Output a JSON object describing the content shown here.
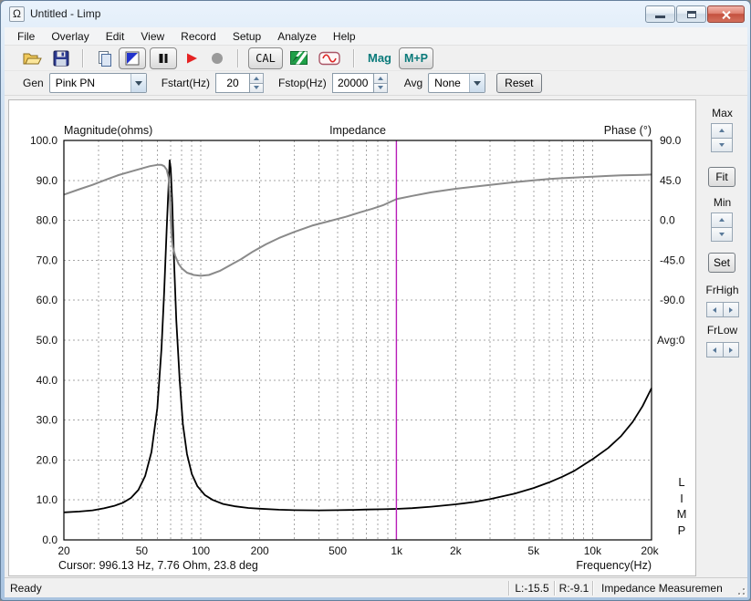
{
  "window": {
    "title": "Untitled - Limp",
    "icon": "Ω",
    "buttons": [
      "minimize",
      "restore",
      "close"
    ]
  },
  "menu": {
    "items": [
      "File",
      "Overlay",
      "Edit",
      "View",
      "Record",
      "Setup",
      "Analyze",
      "Help"
    ]
  },
  "toolbar": {
    "icons": [
      "open-folder",
      "save",
      "copy",
      "signal-generator-toggle",
      "pause-toggle",
      "start",
      "record",
      "cal",
      "spectrum",
      "sine-wave"
    ],
    "cal_label": "CAL",
    "mag_label": "Mag",
    "mp_label": "M+P"
  },
  "gen_bar": {
    "gen_label": "Gen",
    "gen_value": "Pink PN",
    "fstart_label": "Fstart(Hz)",
    "fstart_value": "20",
    "fstop_label": "Fstop(Hz)",
    "fstop_value": "20000",
    "avg_label": "Avg",
    "avg_value": "None",
    "reset_label": "Reset"
  },
  "right_panel": {
    "max_label": "Max",
    "fit_label": "Fit",
    "min_label": "Min",
    "set_label": "Set",
    "frhigh_label": "FrHigh",
    "frlow_label": "FrLow"
  },
  "chart_header": {
    "left": "Magnitude(ohms)",
    "center": "Impedance",
    "right": "Phase (°)"
  },
  "chart_footer": {
    "cursor_text": "Cursor: 996.13 Hz, 7.76 Ohm, 23.8 deg",
    "xaxis_label": "Frequency(Hz)"
  },
  "side_texts": {
    "avg_counter": "Avg:0",
    "limp_vertical": [
      "L",
      "I",
      "M",
      "P"
    ]
  },
  "status_bar": {
    "ready": "Ready",
    "left_level": "L:-15.5",
    "right_level": "R:-9.1",
    "mode": "Impedance Measuremen"
  },
  "colors": {
    "cursor_magenta": "#b81eb8",
    "curve_black": "#000000",
    "curve_gray": "#8a8a8a",
    "accent_teal": "#0a7a7a",
    "frame_blue": "#b6cee7"
  },
  "chart_data": {
    "type": "line",
    "title": "Impedance",
    "x_axis": {
      "label": "Frequency(Hz)",
      "scale": "log",
      "min": 20,
      "max": 20000,
      "ticks": [
        {
          "v": 20,
          "t": "20"
        },
        {
          "v": 50,
          "t": "50"
        },
        {
          "v": 100,
          "t": "100"
        },
        {
          "v": 200,
          "t": "200"
        },
        {
          "v": 500,
          "t": "500"
        },
        {
          "v": 1000,
          "t": "1k"
        },
        {
          "v": 2000,
          "t": "2k"
        },
        {
          "v": 5000,
          "t": "5k"
        },
        {
          "v": 10000,
          "t": "10k"
        },
        {
          "v": 20000,
          "t": "20k"
        }
      ],
      "minor_grid": [
        30,
        40,
        50,
        60,
        70,
        80,
        90,
        100,
        200,
        300,
        400,
        500,
        600,
        700,
        800,
        900,
        1000,
        2000,
        3000,
        4000,
        5000,
        6000,
        7000,
        8000,
        9000,
        10000
      ]
    },
    "y_left_axis": {
      "label": "Magnitude(ohms)",
      "min": 0,
      "max": 100,
      "tick_step": 10,
      "ticks": [
        100,
        90,
        80,
        70,
        60,
        50,
        40,
        30,
        20,
        10,
        0
      ]
    },
    "y_right_axis": {
      "label": "Phase (°)",
      "ticks": [
        90,
        45,
        0,
        -45,
        -90
      ],
      "tick_interval": 45
    },
    "grid": {
      "style": "dashed",
      "color": "#a6a6a6"
    },
    "cursor": {
      "freq_hz": 996.13,
      "ohm": 7.76,
      "deg": 23.8,
      "color": "#b81eb8"
    },
    "avg_count": 0,
    "series": [
      {
        "name": "impedance_magnitude",
        "axis": "left",
        "color": "#000000",
        "width": 1.8,
        "points": [
          [
            20,
            6.9
          ],
          [
            24,
            7.1
          ],
          [
            28,
            7.4
          ],
          [
            32,
            7.9
          ],
          [
            36,
            8.5
          ],
          [
            40,
            9.3
          ],
          [
            44,
            10.5
          ],
          [
            48,
            12.5
          ],
          [
            52,
            16
          ],
          [
            56,
            22
          ],
          [
            60,
            33
          ],
          [
            63,
            48
          ],
          [
            65,
            62
          ],
          [
            67,
            78
          ],
          [
            68.5,
            89
          ],
          [
            69.3,
            95
          ],
          [
            70.2,
            93
          ],
          [
            71.5,
            84
          ],
          [
            73,
            70
          ],
          [
            75,
            55
          ],
          [
            78,
            40
          ],
          [
            81,
            29
          ],
          [
            85,
            21.5
          ],
          [
            90,
            16.5
          ],
          [
            96,
            13.5
          ],
          [
            105,
            11.2
          ],
          [
            115,
            10
          ],
          [
            130,
            9
          ],
          [
            150,
            8.4
          ],
          [
            175,
            8
          ],
          [
            200,
            7.8
          ],
          [
            250,
            7.55
          ],
          [
            300,
            7.45
          ],
          [
            400,
            7.4
          ],
          [
            500,
            7.45
          ],
          [
            600,
            7.5
          ],
          [
            700,
            7.6
          ],
          [
            850,
            7.68
          ],
          [
            996,
            7.76
          ],
          [
            1200,
            7.95
          ],
          [
            1500,
            8.3
          ],
          [
            2000,
            8.9
          ],
          [
            2500,
            9.5
          ],
          [
            3000,
            10.2
          ],
          [
            4000,
            11.6
          ],
          [
            5000,
            13
          ],
          [
            6000,
            14.4
          ],
          [
            7000,
            15.8
          ],
          [
            8000,
            17.2
          ],
          [
            10000,
            20.2
          ],
          [
            12000,
            23
          ],
          [
            14000,
            26
          ],
          [
            16000,
            29.5
          ],
          [
            18000,
            33.5
          ],
          [
            20000,
            38
          ]
        ]
      },
      {
        "name": "impedance_phase",
        "axis": "right",
        "color": "#8a8a8a",
        "width": 2,
        "points": [
          [
            20,
            29
          ],
          [
            24,
            35
          ],
          [
            28,
            40
          ],
          [
            33,
            46
          ],
          [
            38,
            51
          ],
          [
            44,
            55
          ],
          [
            50,
            58.5
          ],
          [
            55,
            61
          ],
          [
            60,
            62.5
          ],
          [
            63,
            62.5
          ],
          [
            65,
            61
          ],
          [
            67,
            57
          ],
          [
            68.5,
            48
          ],
          [
            69.3,
            30
          ],
          [
            70,
            8
          ],
          [
            70.8,
            -15
          ],
          [
            72,
            -30
          ],
          [
            74,
            -40
          ],
          [
            77,
            -49
          ],
          [
            80,
            -54
          ],
          [
            85,
            -59
          ],
          [
            92,
            -61.5
          ],
          [
            100,
            -62.5
          ],
          [
            110,
            -61.5
          ],
          [
            125,
            -57
          ],
          [
            140,
            -51
          ],
          [
            160,
            -44
          ],
          [
            185,
            -35
          ],
          [
            215,
            -27
          ],
          [
            250,
            -20
          ],
          [
            300,
            -13
          ],
          [
            370,
            -6
          ],
          [
            450,
            -1
          ],
          [
            550,
            4
          ],
          [
            650,
            9
          ],
          [
            750,
            13
          ],
          [
            850,
            17
          ],
          [
            996,
            23.8
          ],
          [
            1200,
            27.5
          ],
          [
            1500,
            31.5
          ],
          [
            2000,
            35.5
          ],
          [
            2500,
            38
          ],
          [
            3000,
            40
          ],
          [
            4000,
            43
          ],
          [
            5000,
            45
          ],
          [
            6000,
            46.5
          ],
          [
            7000,
            47.5
          ],
          [
            8000,
            48.2
          ],
          [
            10000,
            49.2
          ],
          [
            12000,
            50
          ],
          [
            14000,
            50.6
          ],
          [
            16000,
            51
          ],
          [
            18000,
            51.3
          ],
          [
            20000,
            51.6
          ]
        ]
      }
    ]
  }
}
